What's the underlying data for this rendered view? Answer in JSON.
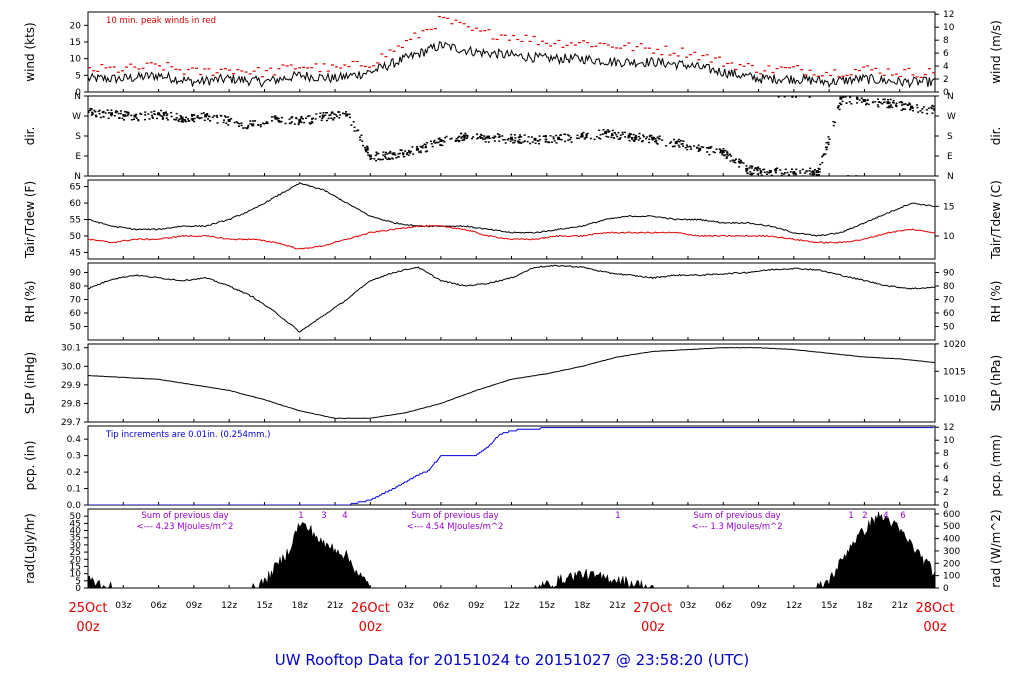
{
  "title": "UW Rooftop Data for 20151024  to  20151027 @ 23:58:20  (UTC)",
  "colors": {
    "axis": "#000000",
    "obs": "#000000",
    "peak": "#e00000",
    "dew": "#e00000",
    "precip": "#0000dd",
    "title": "#0000cc",
    "note": "#9900cc",
    "day_label": "#dd0000"
  },
  "time_axis": {
    "hour_ticks": [
      "03z",
      "06z",
      "09z",
      "12z",
      "15z",
      "18z",
      "21z",
      "03z",
      "06z",
      "09z",
      "12z",
      "15z",
      "18z",
      "21z",
      "03z",
      "06z",
      "09z",
      "12z",
      "15z",
      "18z",
      "21z"
    ],
    "day_labels": [
      {
        "day": "25Oct",
        "hour": "00z"
      },
      {
        "day": "26Oct",
        "hour": "00z"
      },
      {
        "day": "27Oct",
        "hour": "00z"
      },
      {
        "day": "28Oct",
        "hour": "00z"
      }
    ]
  },
  "chart_data": [
    {
      "id": "wind",
      "type": "line",
      "ylabel": "wind (kts)",
      "ylabel_right": "wind (m/s)",
      "ylim": [
        0,
        24
      ],
      "yticks": [
        0,
        5,
        10,
        15,
        20
      ],
      "yticks_right": [
        0,
        2,
        4,
        6,
        8,
        10,
        12
      ],
      "annotation": "10 min. peak winds in red",
      "series": [
        {
          "name": "wind",
          "x": [
            0,
            3,
            6,
            9,
            12,
            15,
            18,
            21,
            24,
            27,
            30,
            33,
            36,
            39,
            42,
            45,
            48,
            51,
            54,
            57,
            60,
            63,
            66,
            69,
            72
          ],
          "values": [
            4,
            4,
            5,
            3,
            4,
            3,
            5,
            4,
            6,
            10,
            14,
            12,
            11,
            10,
            10,
            9,
            9,
            8,
            6,
            4,
            4,
            3,
            4,
            3,
            3
          ]
        },
        {
          "name": "peak",
          "x": [
            0,
            3,
            6,
            9,
            12,
            15,
            18,
            21,
            24,
            27,
            30,
            33,
            36,
            39,
            42,
            45,
            48,
            51,
            54,
            57,
            60,
            63,
            66,
            69,
            72
          ],
          "values": [
            7,
            7,
            8,
            6,
            7,
            6,
            8,
            7,
            9,
            15,
            22,
            18,
            17,
            15,
            15,
            14,
            13,
            12,
            9,
            7,
            7,
            6,
            7,
            6,
            6
          ]
        }
      ]
    },
    {
      "id": "dir",
      "type": "scatter",
      "ylabel": "dir.",
      "ylabel_right": "dir.",
      "ylim": [
        0,
        360
      ],
      "ytick_labels": [
        "N",
        "E",
        "S",
        "W",
        "N"
      ],
      "series": [
        {
          "name": "direction",
          "x": [
            0,
            2,
            4,
            6,
            8,
            10,
            12,
            14,
            16,
            18,
            20,
            22,
            24,
            26,
            28,
            30,
            32,
            34,
            36,
            38,
            40,
            42,
            44,
            46,
            48,
            50,
            52,
            54,
            56,
            58,
            60,
            62,
            64,
            66,
            68,
            70,
            72
          ],
          "values": [
            290,
            280,
            270,
            280,
            260,
            270,
            250,
            230,
            260,
            250,
            270,
            275,
            90,
            100,
            120,
            160,
            180,
            175,
            170,
            165,
            170,
            180,
            195,
            180,
            170,
            150,
            120,
            110,
            30,
            20,
            15,
            20,
            350,
            340,
            330,
            310,
            300
          ]
        }
      ]
    },
    {
      "id": "temp",
      "type": "line",
      "ylabel": "Tair/Tdew (F)",
      "ylabel_right": "Tair/Tdew (C)",
      "ylim": [
        43,
        67
      ],
      "yticks": [
        45,
        50,
        55,
        60,
        65
      ],
      "yticks_right": [
        10,
        15
      ],
      "series": [
        {
          "name": "Tair",
          "x": [
            0,
            2,
            4,
            6,
            8,
            10,
            12,
            14,
            16,
            18,
            20,
            22,
            24,
            26,
            28,
            30,
            32,
            34,
            36,
            38,
            40,
            42,
            44,
            46,
            48,
            50,
            52,
            54,
            56,
            58,
            60,
            62,
            64,
            66,
            68,
            70,
            72
          ],
          "values": [
            55,
            53,
            52,
            52,
            53,
            53,
            55,
            58,
            62,
            66,
            64,
            60,
            56,
            54,
            53,
            53,
            53,
            52,
            51,
            51,
            52,
            53,
            55,
            56,
            56,
            55,
            55,
            54,
            54,
            53,
            51,
            50,
            51,
            54,
            57,
            60,
            59
          ]
        },
        {
          "name": "Tdew",
          "x": [
            0,
            2,
            4,
            6,
            8,
            10,
            12,
            14,
            16,
            18,
            20,
            22,
            24,
            26,
            28,
            30,
            32,
            34,
            36,
            38,
            40,
            42,
            44,
            46,
            48,
            50,
            52,
            54,
            56,
            58,
            60,
            62,
            64,
            66,
            68,
            70,
            72
          ],
          "values": [
            49,
            48,
            49,
            49,
            50,
            50,
            49,
            49,
            48,
            46,
            47,
            49,
            51,
            52,
            53,
            53,
            52,
            50,
            49,
            49,
            50,
            50,
            51,
            51,
            51,
            51,
            50,
            50,
            50,
            50,
            49,
            48,
            48,
            49,
            51,
            52,
            51
          ]
        }
      ]
    },
    {
      "id": "rh",
      "type": "line",
      "ylabel": "RH (%)",
      "ylabel_right": "RH (%)",
      "ylim": [
        40,
        97
      ],
      "yticks": [
        50,
        60,
        70,
        80,
        90
      ],
      "yticks_right": [
        50,
        60,
        70,
        80,
        90
      ],
      "series": [
        {
          "name": "RH",
          "x": [
            0,
            2,
            4,
            6,
            8,
            10,
            12,
            14,
            16,
            18,
            20,
            22,
            24,
            26,
            28,
            30,
            32,
            34,
            36,
            38,
            40,
            42,
            44,
            46,
            48,
            50,
            52,
            54,
            56,
            58,
            60,
            62,
            64,
            66,
            68,
            70,
            72
          ],
          "values": [
            78,
            85,
            88,
            86,
            84,
            86,
            80,
            72,
            60,
            46,
            58,
            70,
            84,
            90,
            94,
            84,
            80,
            82,
            86,
            94,
            95,
            94,
            90,
            88,
            86,
            88,
            88,
            89,
            90,
            92,
            93,
            92,
            88,
            84,
            80,
            78,
            79
          ]
        }
      ]
    },
    {
      "id": "slp",
      "type": "line",
      "ylabel": "SLP (inHg)",
      "ylabel_right": "SLP (hPa)",
      "ylim": [
        29.7,
        30.12
      ],
      "yticks": [
        29.7,
        29.8,
        29.9,
        30.0,
        30.1
      ],
      "yticks_right": [
        1010,
        1015,
        1020
      ],
      "series": [
        {
          "name": "SLP",
          "x": [
            0,
            3,
            6,
            9,
            12,
            15,
            18,
            21,
            24,
            27,
            30,
            33,
            36,
            39,
            42,
            45,
            48,
            51,
            54,
            57,
            60,
            63,
            66,
            69,
            72
          ],
          "values": [
            29.95,
            29.94,
            29.93,
            29.9,
            29.87,
            29.82,
            29.76,
            29.72,
            29.72,
            29.75,
            29.8,
            29.87,
            29.93,
            29.96,
            30.0,
            30.05,
            30.08,
            30.09,
            30.1,
            30.1,
            30.09,
            30.07,
            30.05,
            30.04,
            30.02
          ]
        }
      ]
    },
    {
      "id": "pcp",
      "type": "line",
      "ylabel": "pcp. (in)",
      "ylabel_right": "pcp. (mm)",
      "ylim": [
        0,
        0.48
      ],
      "yticks": [
        0.0,
        0.1,
        0.2,
        0.3,
        0.4
      ],
      "yticks_right": [
        0,
        2,
        4,
        6,
        8,
        10,
        12
      ],
      "annotation": "Tip increments are 0.01in. (0.254mm.)",
      "series": [
        {
          "name": "precip",
          "x": [
            0,
            22,
            24,
            26,
            28,
            29,
            30,
            33,
            34,
            35,
            36,
            37,
            38,
            39,
            40,
            48,
            72
          ],
          "values": [
            0,
            0,
            0.03,
            0.1,
            0.18,
            0.21,
            0.3,
            0.3,
            0.35,
            0.43,
            0.45,
            0.46,
            0.46,
            0.47,
            0.47,
            0.47,
            0.47
          ]
        }
      ]
    },
    {
      "id": "rad",
      "type": "area",
      "ylabel": "rad(Lgly/hr)",
      "ylabel_right": "rad (W/m^2)",
      "ylim": [
        0,
        55
      ],
      "yticks": [
        0,
        5,
        10,
        15,
        20,
        25,
        30,
        35,
        40,
        45,
        50
      ],
      "yticks_right": [
        0,
        100,
        200,
        300,
        400,
        500,
        600
      ],
      "annotations": [
        {
          "line1": "Sum of previous day",
          "line2": "<--- 4.23 MJoules/m^2"
        },
        {
          "line1": "Sum of previous day",
          "line2": "<--- 4.54 MJoules/m^2"
        },
        {
          "line1": "Sum of previous day",
          "line2": "<--- 1.3 MJoules/m^2"
        }
      ],
      "peak_marks": [
        "1",
        "3",
        "4",
        "1",
        "1",
        "2",
        "4",
        "6"
      ],
      "series": [
        {
          "name": "radiation",
          "x": [
            0,
            1,
            2,
            14,
            15,
            16,
            17,
            18,
            19,
            20,
            21,
            22,
            23,
            24,
            38,
            39,
            40,
            41,
            42,
            43,
            44,
            45,
            46,
            47,
            48,
            62,
            63,
            64,
            65,
            66,
            67,
            68,
            69,
            70,
            71,
            72
          ],
          "values": [
            6,
            3,
            0,
            0,
            4,
            15,
            25,
            45,
            40,
            30,
            28,
            22,
            10,
            0,
            0,
            2,
            5,
            8,
            10,
            8,
            7,
            6,
            4,
            2,
            0,
            0,
            5,
            18,
            32,
            40,
            50,
            48,
            40,
            30,
            20,
            10
          ]
        }
      ]
    }
  ]
}
